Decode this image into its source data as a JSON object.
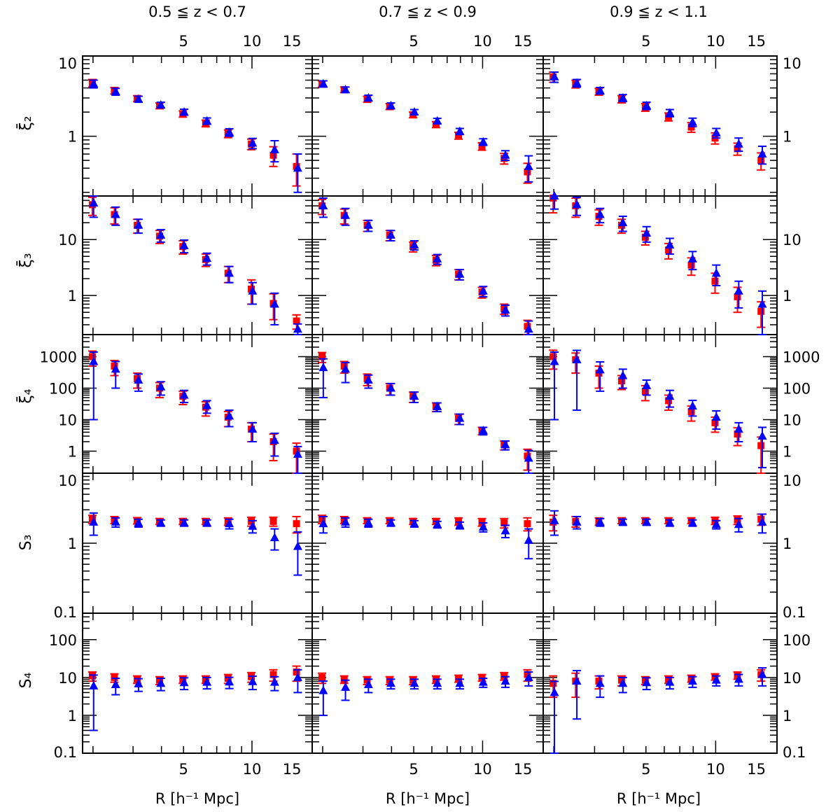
{
  "figure": {
    "x_axis_label": "R [h⁻¹ Mpc]",
    "x_ticks": [
      5,
      10,
      15
    ],
    "x_range": [
      1.8,
      18.4
    ],
    "column_titles": [
      "0.5 ≦ z < 0.7",
      "0.7 ≦ z < 0.9",
      "0.9 ≦ z < 1.1"
    ],
    "row_labels": [
      "ξ̄₂",
      "ξ̄₃",
      "ξ̄₄",
      "S₃",
      "S₄"
    ],
    "rows": [
      {
        "key": "xi2",
        "scale": "log",
        "ylim": [
          0.18,
          10
        ],
        "ticks": [
          1,
          10
        ]
      },
      {
        "key": "xi3",
        "scale": "log",
        "ylim": [
          0.2,
          60
        ],
        "ticks": [
          1,
          10
        ]
      },
      {
        "key": "xi4",
        "scale": "log",
        "ylim": [
          0.2,
          5000
        ],
        "ticks": [
          1,
          10,
          100,
          1000
        ]
      },
      {
        "key": "S3",
        "scale": "log",
        "ylim": [
          0.1,
          10
        ],
        "ticks": [
          0.1,
          1,
          10
        ]
      },
      {
        "key": "S4",
        "scale": "log",
        "ylim": [
          0.1,
          500
        ],
        "ticks": [
          0.1,
          1,
          10,
          100
        ]
      }
    ],
    "colors": {
      "series_square": "#ff0000",
      "series_triangle": "#0000ff",
      "axes": "#000000"
    }
  },
  "chart_data": {
    "type": "scatter",
    "x": [
      2.0,
      2.5,
      3.15,
      3.95,
      5.0,
      6.3,
      7.9,
      10.0,
      12.5,
      15.8
    ],
    "marker_styles": {
      "series_square": "square",
      "series_triangle": "triangle"
    },
    "panels": [
      {
        "row": "xi2",
        "col": 0,
        "square": {
          "y": [
            4.6,
            3.7,
            2.95,
            2.4,
            1.9,
            1.45,
            1.08,
            0.8,
            0.58,
            0.42
          ],
          "err": [
            0.5,
            0.35,
            0.25,
            0.2,
            0.17,
            0.14,
            0.12,
            0.12,
            0.16,
            0.18
          ]
        },
        "triangle": {
          "y": [
            4.5,
            3.6,
            2.9,
            2.45,
            2.0,
            1.55,
            1.12,
            0.82,
            0.68,
            0.4
          ],
          "err": [
            0.5,
            0.35,
            0.25,
            0.2,
            0.17,
            0.14,
            0.12,
            0.12,
            0.2,
            0.2
          ]
        }
      },
      {
        "row": "xi2",
        "col": 1,
        "square": {
          "y": [
            4.5,
            3.8,
            2.9,
            2.35,
            1.85,
            1.4,
            1.02,
            0.75,
            0.53,
            0.36
          ],
          "err": [
            0.4,
            0.3,
            0.25,
            0.2,
            0.15,
            0.12,
            0.1,
            0.08,
            0.08,
            0.1
          ]
        },
        "triangle": {
          "y": [
            4.5,
            3.8,
            3.0,
            2.4,
            2.0,
            1.55,
            1.15,
            0.85,
            0.58,
            0.42
          ],
          "err": [
            0.4,
            0.3,
            0.25,
            0.2,
            0.15,
            0.12,
            0.1,
            0.08,
            0.08,
            0.15
          ]
        }
      },
      {
        "row": "xi2",
        "col": 2,
        "square": {
          "y": [
            5.5,
            4.5,
            3.6,
            2.9,
            2.3,
            1.75,
            1.3,
            0.95,
            0.7,
            0.5
          ],
          "err": [
            0.8,
            0.5,
            0.35,
            0.3,
            0.25,
            0.2,
            0.18,
            0.15,
            0.12,
            0.12
          ]
        },
        "triangle": {
          "y": [
            5.5,
            4.6,
            3.7,
            3.0,
            2.4,
            1.95,
            1.5,
            1.1,
            0.8,
            0.6
          ],
          "err": [
            0.8,
            0.5,
            0.35,
            0.3,
            0.25,
            0.2,
            0.18,
            0.15,
            0.15,
            0.15
          ]
        }
      },
      {
        "row": "xi3",
        "col": 0,
        "square": {
          "y": [
            42,
            28,
            18,
            11.5,
            7.5,
            4.4,
            2.5,
            1.3,
            0.72,
            0.35
          ],
          "err": [
            15,
            9,
            5,
            3,
            2,
            1.1,
            0.8,
            0.6,
            0.35,
            0.1
          ]
        },
        "triangle": {
          "y": [
            45,
            28,
            18,
            12,
            7.8,
            4.6,
            2.5,
            1.2,
            0.7,
            0.25
          ],
          "err": [
            20,
            10,
            5,
            3,
            2,
            1.1,
            0.8,
            0.5,
            0.4,
            0.06
          ]
        }
      },
      {
        "row": "xi3",
        "col": 1,
        "square": {
          "y": [
            40,
            27,
            18,
            12,
            7.5,
            4.3,
            2.4,
            1.15,
            0.58,
            0.28
          ],
          "err": [
            12,
            8,
            4,
            2.5,
            1.5,
            0.9,
            0.5,
            0.25,
            0.12,
            0.08
          ]
        },
        "triangle": {
          "y": [
            40,
            27,
            18,
            12,
            8,
            4.5,
            2.4,
            1.2,
            0.55,
            0.25
          ],
          "err": [
            15,
            9,
            4,
            2.5,
            1.5,
            0.9,
            0.5,
            0.25,
            0.12,
            0.1
          ]
        }
      },
      {
        "row": "xi3",
        "col": 2,
        "square": {
          "y": [
            55,
            40,
            26,
            18,
            11,
            6.5,
            3.5,
            1.8,
            0.95,
            0.52
          ],
          "err": [
            25,
            15,
            8,
            5,
            3,
            2,
            1.2,
            0.7,
            0.45,
            0.25
          ]
        },
        "triangle": {
          "y": [
            60,
            42,
            28,
            20,
            13,
            8,
            4.5,
            2.5,
            1.2,
            0.7
          ],
          "err": [
            25,
            15,
            8,
            6,
            4,
            2.5,
            1.6,
            1,
            0.6,
            0.5
          ]
        }
      },
      {
        "row": "xi4",
        "col": 0,
        "square": {
          "y": [
            1000,
            500,
            200,
            100,
            55,
            25,
            12,
            5,
            2,
            1.0
          ],
          "err": [
            500,
            250,
            100,
            50,
            25,
            12,
            6,
            3,
            1.5,
            0.8
          ]
        },
        "triangle": {
          "y": [
            700,
            400,
            180,
            110,
            60,
            28,
            13,
            5,
            2.2,
            0.8
          ],
          "err": [
            690,
            300,
            100,
            50,
            25,
            12,
            7,
            3,
            1.5,
            0.6
          ]
        }
      },
      {
        "row": "xi4",
        "col": 1,
        "square": {
          "y": [
            1000,
            500,
            200,
            100,
            55,
            26,
            11,
            4.5,
            1.6,
            0.7
          ],
          "err": [
            350,
            200,
            80,
            40,
            20,
            8,
            4,
            1.2,
            0.5,
            0.45
          ]
        },
        "triangle": {
          "y": [
            450,
            400,
            180,
            100,
            55,
            26,
            11,
            4.5,
            1.6,
            0.6
          ],
          "err": [
            400,
            250,
            80,
            40,
            20,
            8,
            4,
            1.2,
            0.5,
            0.45
          ]
        }
      },
      {
        "row": "xi4",
        "col": 2,
        "square": {
          "y": [
            1000,
            800,
            300,
            170,
            80,
            40,
            18,
            8,
            3.5,
            1.5
          ],
          "err": [
            600,
            500,
            200,
            80,
            40,
            20,
            9,
            4,
            2,
            1.3
          ]
        },
        "triangle": {
          "y": [
            700,
            800,
            380,
            250,
            120,
            55,
            27,
            12,
            5,
            3
          ],
          "err": [
            690,
            780,
            300,
            150,
            60,
            30,
            14,
            7,
            3,
            2.7
          ]
        }
      },
      {
        "row": "S3",
        "col": 0,
        "square": {
          "y": [
            2.2,
            2.15,
            2.1,
            2.05,
            2.05,
            2.05,
            2.05,
            2.05,
            2.05,
            1.9
          ],
          "err": [
            0.3,
            0.25,
            0.22,
            0.2,
            0.2,
            0.2,
            0.25,
            0.3,
            0.3,
            0.5
          ]
        },
        "triangle": {
          "y": [
            2.0,
            2.0,
            1.95,
            1.95,
            1.95,
            1.95,
            1.9,
            1.75,
            1.2,
            0.9
          ],
          "err": [
            0.7,
            0.3,
            0.25,
            0.2,
            0.2,
            0.2,
            0.3,
            0.35,
            0.4,
            0.55
          ]
        }
      },
      {
        "row": "S3",
        "col": 1,
        "square": {
          "y": [
            2.2,
            2.15,
            2.1,
            2.1,
            2.05,
            2.05,
            2.05,
            2.0,
            1.95,
            1.9
          ],
          "err": [
            0.3,
            0.25,
            0.2,
            0.2,
            0.2,
            0.2,
            0.25,
            0.25,
            0.3,
            0.4
          ]
        },
        "triangle": {
          "y": [
            1.9,
            2.0,
            1.95,
            1.95,
            1.9,
            1.85,
            1.8,
            1.7,
            1.5,
            1.1
          ],
          "err": [
            0.5,
            0.3,
            0.25,
            0.2,
            0.2,
            0.2,
            0.2,
            0.25,
            0.3,
            0.5
          ]
        }
      },
      {
        "row": "S3",
        "col": 2,
        "square": {
          "y": [
            2.0,
            2.05,
            2.05,
            2.1,
            2.1,
            2.1,
            2.1,
            2.1,
            2.15,
            2.2
          ],
          "err": [
            0.5,
            0.35,
            0.25,
            0.2,
            0.2,
            0.2,
            0.2,
            0.25,
            0.3,
            0.4
          ]
        },
        "triangle": {
          "y": [
            2.1,
            2.0,
            2.0,
            2.0,
            2.0,
            1.95,
            1.95,
            1.85,
            1.85,
            2.0
          ],
          "err": [
            0.8,
            0.4,
            0.25,
            0.2,
            0.2,
            0.2,
            0.2,
            0.25,
            0.4,
            0.6
          ]
        }
      },
      {
        "row": "S4",
        "col": 0,
        "square": {
          "y": [
            11,
            10,
            9,
            8.5,
            9,
            9,
            9.5,
            10.5,
            12,
            14
          ],
          "err": [
            3,
            2.5,
            2,
            2,
            2,
            2,
            2.5,
            3,
            4,
            6
          ]
        },
        "triangle": {
          "y": [
            6,
            6.5,
            6.8,
            7,
            7.3,
            7.5,
            7.6,
            7.8,
            7.5,
            10
          ],
          "err": [
            5.6,
            3,
            2.5,
            2.5,
            2.5,
            2.5,
            2.5,
            3,
            3,
            6
          ]
        }
      },
      {
        "row": "S4",
        "col": 1,
        "square": {
          "y": [
            10,
            9,
            8.5,
            8.5,
            8.5,
            9,
            9.5,
            10,
            11,
            12
          ],
          "err": [
            3,
            2,
            2,
            2,
            2,
            2,
            2,
            2,
            2.5,
            4
          ]
        },
        "triangle": {
          "y": [
            4.5,
            5.5,
            6.5,
            7,
            7,
            7,
            7,
            7.5,
            8,
            10
          ],
          "err": [
            3.5,
            3,
            2.5,
            2,
            2,
            2,
            2,
            2,
            2.5,
            4
          ]
        }
      },
      {
        "row": "S4",
        "col": 2,
        "square": {
          "y": [
            7,
            8,
            8,
            8.5,
            8.5,
            9,
            9.5,
            10.5,
            11.5,
            12
          ],
          "err": [
            4,
            5,
            3,
            2.5,
            2,
            2,
            2,
            2,
            2.5,
            4
          ]
        },
        "triangle": {
          "y": [
            4,
            8,
            7,
            7,
            7.3,
            7.5,
            8,
            8.5,
            9,
            12
          ],
          "err": [
            3.9,
            7.2,
            4,
            3,
            2.5,
            2.5,
            2.5,
            2.5,
            3,
            6
          ]
        }
      }
    ]
  }
}
